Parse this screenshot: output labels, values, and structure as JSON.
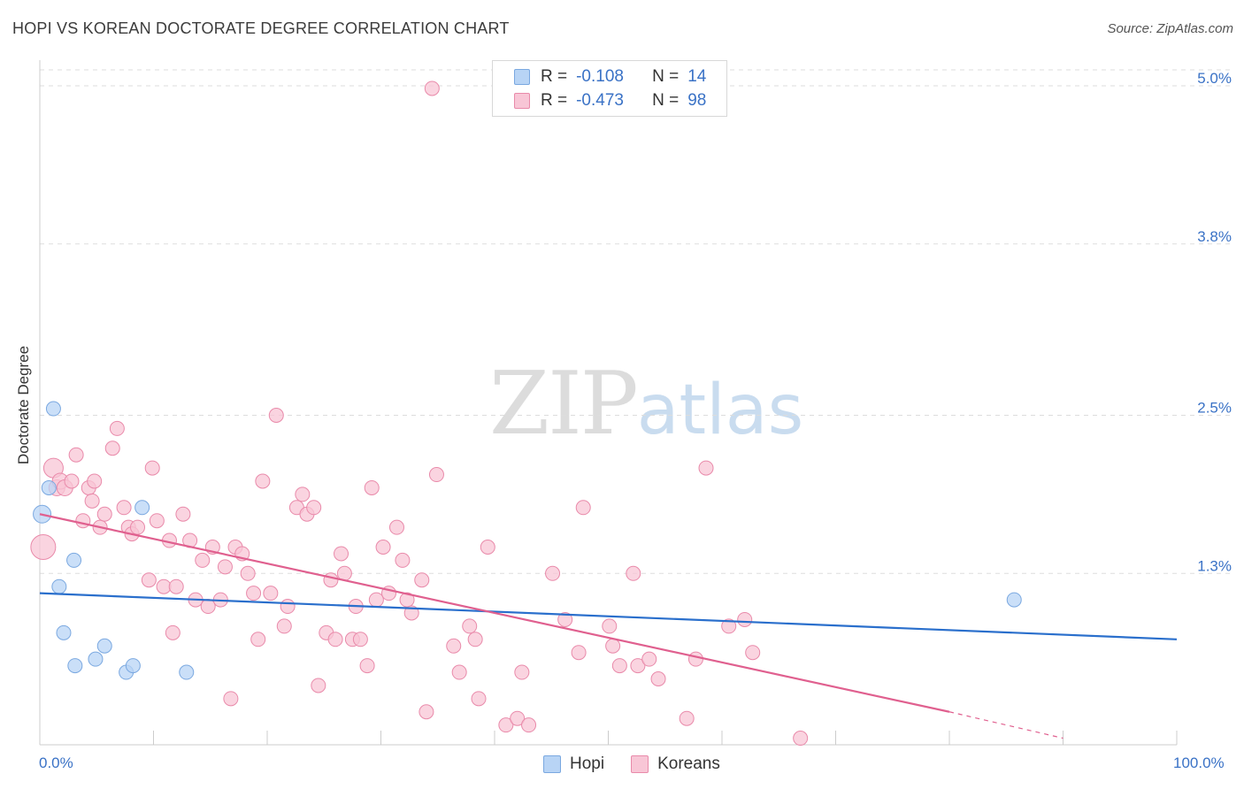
{
  "title": "HOPI VS KOREAN DOCTORATE DEGREE CORRELATION CHART",
  "source": "Source: ZipAtlas.com",
  "watermark": {
    "zip": "ZIP",
    "atlas": "atlas"
  },
  "legend_top": [
    {
      "r_label": "R =",
      "r_value": "-0.108",
      "n_label": "N =",
      "n_value": "14"
    },
    {
      "r_label": "R =",
      "r_value": "-0.473",
      "n_label": "N =",
      "n_value": "98"
    }
  ],
  "colors": {
    "hopi_fill": "#b8d4f5",
    "hopi_stroke": "#7aa8e0",
    "hopi_line": "#2a6fcc",
    "korean_fill": "#f8c6d6",
    "korean_stroke": "#e98aaa",
    "korean_line": "#e0608f",
    "axis_text": "#3a72c6"
  },
  "chart_data": {
    "type": "scatter",
    "title": "HOPI VS KOREAN DOCTORATE DEGREE CORRELATION CHART",
    "xlabel": "",
    "ylabel": "Doctorate Degree",
    "x_tick_labels": [
      "0.0%",
      "100.0%"
    ],
    "y_tick_labels": [
      "1.3%",
      "2.5%",
      "3.8%",
      "5.0%"
    ],
    "y_ticks": [
      1.3,
      2.5,
      3.8,
      5.0
    ],
    "xlim": [
      0,
      100
    ],
    "ylim": [
      0,
      5.1
    ],
    "grid": "horizontal dashed",
    "legend_position": "bottom-center",
    "series": [
      {
        "name": "Hopi",
        "points": [
          [
            0.2,
            1.75,
            10
          ],
          [
            0.8,
            1.95,
            8
          ],
          [
            1.2,
            2.55,
            8
          ],
          [
            1.7,
            1.2,
            8
          ],
          [
            2.1,
            0.85,
            8
          ],
          [
            3.0,
            1.4,
            8
          ],
          [
            3.1,
            0.6,
            8
          ],
          [
            4.9,
            0.65,
            8
          ],
          [
            5.7,
            0.75,
            8
          ],
          [
            7.6,
            0.55,
            8
          ],
          [
            8.2,
            0.6,
            8
          ],
          [
            9.0,
            1.8,
            8
          ],
          [
            12.9,
            0.55,
            8
          ],
          [
            85.7,
            1.1,
            8
          ]
        ],
        "trend": {
          "x": [
            0,
            100
          ],
          "y": [
            1.15,
            0.8
          ]
        }
      },
      {
        "name": "Koreans",
        "points": [
          [
            0.3,
            1.5,
            14
          ],
          [
            1.2,
            2.1,
            11
          ],
          [
            1.5,
            1.95,
            9
          ],
          [
            1.8,
            2.0,
            9
          ],
          [
            2.2,
            1.95,
            9
          ],
          [
            2.8,
            2.0,
            8
          ],
          [
            3.2,
            2.2,
            8
          ],
          [
            3.8,
            1.7,
            8
          ],
          [
            4.3,
            1.95,
            8
          ],
          [
            4.6,
            1.85,
            8
          ],
          [
            4.8,
            2.0,
            8
          ],
          [
            5.3,
            1.65,
            8
          ],
          [
            5.7,
            1.75,
            8
          ],
          [
            6.4,
            2.25,
            8
          ],
          [
            6.8,
            2.4,
            8
          ],
          [
            7.4,
            1.8,
            8
          ],
          [
            7.8,
            1.65,
            8
          ],
          [
            8.1,
            1.6,
            8
          ],
          [
            8.6,
            1.65,
            8
          ],
          [
            9.6,
            1.25,
            8
          ],
          [
            9.9,
            2.1,
            8
          ],
          [
            10.3,
            1.7,
            8
          ],
          [
            10.9,
            1.2,
            8
          ],
          [
            11.4,
            1.55,
            8
          ],
          [
            11.7,
            0.85,
            8
          ],
          [
            12.0,
            1.2,
            8
          ],
          [
            12.6,
            1.75,
            8
          ],
          [
            13.2,
            1.55,
            8
          ],
          [
            13.7,
            1.1,
            8
          ],
          [
            14.3,
            1.4,
            8
          ],
          [
            14.8,
            1.05,
            8
          ],
          [
            15.2,
            1.5,
            8
          ],
          [
            15.9,
            1.1,
            8
          ],
          [
            16.3,
            1.35,
            8
          ],
          [
            16.8,
            0.35,
            8
          ],
          [
            17.2,
            1.5,
            8
          ],
          [
            17.8,
            1.45,
            8
          ],
          [
            18.3,
            1.3,
            8
          ],
          [
            18.8,
            1.15,
            8
          ],
          [
            19.2,
            0.8,
            8
          ],
          [
            19.6,
            2.0,
            8
          ],
          [
            20.3,
            1.15,
            8
          ],
          [
            20.8,
            2.5,
            8
          ],
          [
            21.5,
            0.9,
            8
          ],
          [
            21.8,
            1.05,
            8
          ],
          [
            22.6,
            1.8,
            8
          ],
          [
            23.1,
            1.9,
            8
          ],
          [
            23.5,
            1.75,
            8
          ],
          [
            24.1,
            1.8,
            8
          ],
          [
            24.5,
            0.45,
            8
          ],
          [
            25.2,
            0.85,
            8
          ],
          [
            25.6,
            1.25,
            8
          ],
          [
            26.0,
            0.8,
            8
          ],
          [
            26.5,
            1.45,
            8
          ],
          [
            26.8,
            1.3,
            8
          ],
          [
            27.5,
            0.8,
            8
          ],
          [
            27.8,
            1.05,
            8
          ],
          [
            28.2,
            0.8,
            8
          ],
          [
            28.8,
            0.6,
            8
          ],
          [
            29.2,
            1.95,
            8
          ],
          [
            29.6,
            1.1,
            8
          ],
          [
            30.2,
            1.5,
            8
          ],
          [
            30.7,
            1.15,
            8
          ],
          [
            31.4,
            1.65,
            8
          ],
          [
            31.9,
            1.4,
            8
          ],
          [
            32.3,
            1.1,
            8
          ],
          [
            32.7,
            1.0,
            8
          ],
          [
            33.6,
            1.25,
            8
          ],
          [
            34.0,
            0.25,
            8
          ],
          [
            34.5,
            4.98,
            8
          ],
          [
            34.9,
            2.05,
            8
          ],
          [
            36.4,
            0.75,
            8
          ],
          [
            36.9,
            0.55,
            8
          ],
          [
            37.8,
            0.9,
            8
          ],
          [
            38.3,
            0.8,
            8
          ],
          [
            38.6,
            0.35,
            8
          ],
          [
            39.4,
            1.5,
            8
          ],
          [
            41.0,
            0.15,
            8
          ],
          [
            42.0,
            0.2,
            8
          ],
          [
            42.4,
            0.55,
            8
          ],
          [
            43.0,
            0.15,
            8
          ],
          [
            45.1,
            1.3,
            8
          ],
          [
            46.2,
            0.95,
            8
          ],
          [
            47.4,
            0.7,
            8
          ],
          [
            47.8,
            1.8,
            8
          ],
          [
            50.1,
            0.9,
            8
          ],
          [
            50.4,
            0.75,
            8
          ],
          [
            51.0,
            0.6,
            8
          ],
          [
            52.2,
            1.3,
            8
          ],
          [
            52.6,
            0.6,
            8
          ],
          [
            53.6,
            0.65,
            8
          ],
          [
            54.4,
            0.5,
            8
          ],
          [
            56.9,
            0.2,
            8
          ],
          [
            57.7,
            0.65,
            8
          ],
          [
            58.6,
            2.1,
            8
          ],
          [
            60.6,
            0.9,
            8
          ],
          [
            62.0,
            0.95,
            8
          ],
          [
            62.7,
            0.7,
            8
          ],
          [
            66.9,
            0.05,
            8
          ]
        ],
        "trend": {
          "x": [
            0,
            80
          ],
          "y": [
            1.75,
            0.25
          ]
        },
        "trend_dashed": {
          "x": [
            80,
            90
          ],
          "y": [
            0.25,
            0.05
          ]
        }
      }
    ]
  }
}
